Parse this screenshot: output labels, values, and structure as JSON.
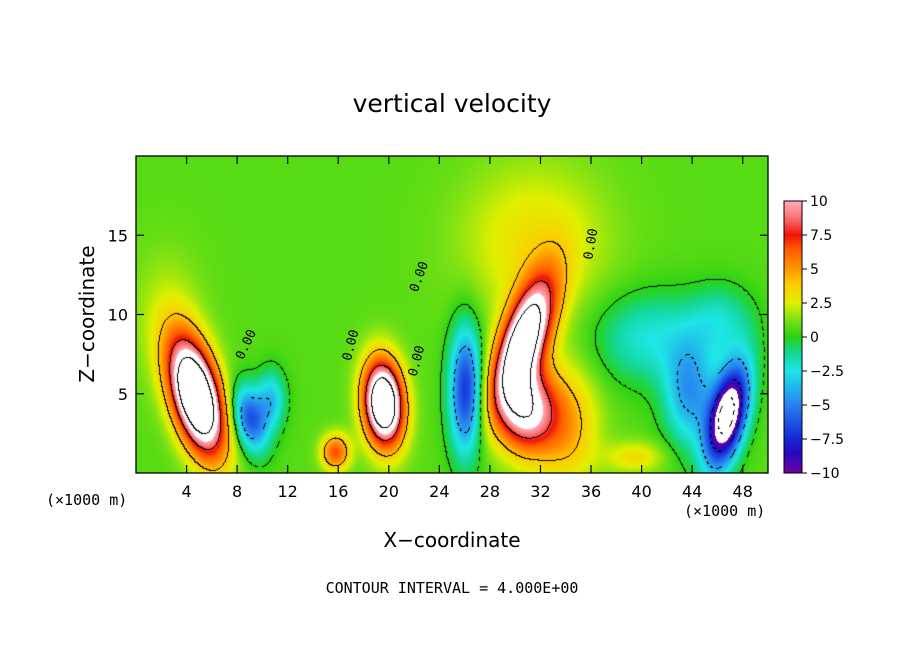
{
  "chart_data": {
    "type": "heatmap",
    "title": "vertical velocity",
    "xlabel": "X−coordinate",
    "ylabel": "Z−coordinate",
    "x_unit_label": "(×1000 m)",
    "y_unit_label": "(×1000 m)",
    "xlim": [
      0,
      50
    ],
    "ylim": [
      0,
      20
    ],
    "x_ticks": [
      {
        "value": 4,
        "label": "4"
      },
      {
        "value": 8,
        "label": "8"
      },
      {
        "value": 12,
        "label": "12"
      },
      {
        "value": 16,
        "label": "16"
      },
      {
        "value": 20,
        "label": "20"
      },
      {
        "value": 24,
        "label": "24"
      },
      {
        "value": 28,
        "label": "28"
      },
      {
        "value": 32,
        "label": "32"
      },
      {
        "value": 36,
        "label": "36"
      },
      {
        "value": 40,
        "label": "40"
      },
      {
        "value": 44,
        "label": "44"
      },
      {
        "value": 48,
        "label": "48"
      }
    ],
    "y_ticks": [
      {
        "value": 5,
        "label": "5"
      },
      {
        "value": 10,
        "label": "10"
      },
      {
        "value": 15,
        "label": "15"
      }
    ],
    "colorbar": {
      "range": [
        -10,
        10
      ],
      "ticks": [
        {
          "value": 10,
          "label": "10"
        },
        {
          "value": 7.5,
          "label": "7.5"
        },
        {
          "value": 5,
          "label": "5"
        },
        {
          "value": 2.5,
          "label": "2.5"
        },
        {
          "value": 0,
          "label": "0"
        },
        {
          "value": -2.5,
          "label": "−2.5"
        },
        {
          "value": -5,
          "label": "−5"
        },
        {
          "value": -7.5,
          "label": "−7.5"
        },
        {
          "value": -10,
          "label": "−10"
        }
      ]
    },
    "features": [
      {
        "x": 4.8,
        "z": 4.8,
        "sx": 1.3,
        "sz": 2.7,
        "amp": 17,
        "tilt": 0.35
      },
      {
        "x": 9.0,
        "z": 3.4,
        "sx": 0.9,
        "sz": 1.5,
        "amp": -7,
        "tilt": 0.3
      },
      {
        "x": 10.7,
        "z": 4.6,
        "sx": 0.8,
        "sz": 1.3,
        "amp": -4,
        "tilt": 0
      },
      {
        "x": 15.8,
        "z": 1.3,
        "sx": 0.8,
        "sz": 0.8,
        "amp": 6,
        "tilt": 0
      },
      {
        "x": 19.6,
        "z": 4.4,
        "sx": 1.1,
        "sz": 1.9,
        "amp": 16,
        "tilt": 0.1
      },
      {
        "x": 26.1,
        "z": 5.2,
        "sx": 0.9,
        "sz": 2.8,
        "amp": -8,
        "tilt": 0
      },
      {
        "x": 30.7,
        "z": 8.4,
        "sx": 1.2,
        "sz": 2.9,
        "amp": 14,
        "tilt": -0.45
      },
      {
        "x": 30.8,
        "z": 4.0,
        "sx": 1.6,
        "sz": 1.9,
        "amp": 10,
        "tilt": 0
      },
      {
        "x": 34.0,
        "z": 3.0,
        "sx": 1.8,
        "sz": 2.6,
        "amp": 4,
        "tilt": 0
      },
      {
        "x": 40.5,
        "z": 8.5,
        "sx": 3.0,
        "sz": 2.0,
        "amp": -3,
        "tilt": 0
      },
      {
        "x": 43.8,
        "z": 5.0,
        "sx": 1.4,
        "sz": 2.3,
        "amp": -5,
        "tilt": 0
      },
      {
        "x": 46.8,
        "z": 3.6,
        "sx": 1.0,
        "sz": 2.3,
        "amp": -14,
        "tilt": -0.3
      },
      {
        "x": 46.3,
        "z": 9.5,
        "sx": 1.8,
        "sz": 1.6,
        "amp": -2.5,
        "tilt": 0
      },
      {
        "x": 31.5,
        "z": 14.5,
        "sx": 4.0,
        "sz": 3.5,
        "amp": 2.5,
        "tilt": 0
      },
      {
        "x": 39.5,
        "z": 1.0,
        "sx": 1.6,
        "sz": 0.7,
        "amp": 2.5,
        "tilt": 0
      },
      {
        "x": 2.5,
        "z": 10.0,
        "sx": 2.0,
        "sz": 3.0,
        "amp": 1.2,
        "tilt": 0
      }
    ],
    "contour_labels": [
      {
        "x": 9.0,
        "z": 8.0,
        "text": "0.00",
        "angle": -65
      },
      {
        "x": 17.3,
        "z": 8.0,
        "text": "0.00",
        "angle": -75
      },
      {
        "x": 22.7,
        "z": 12.3,
        "text": "0.00",
        "angle": -70
      },
      {
        "x": 22.5,
        "z": 7.0,
        "text": "0.00",
        "angle": -75
      },
      {
        "x": 36.3,
        "z": 14.4,
        "text": "0.00",
        "angle": -80
      }
    ],
    "footer": "CONTOUR INTERVAL = 4.000E+00"
  }
}
